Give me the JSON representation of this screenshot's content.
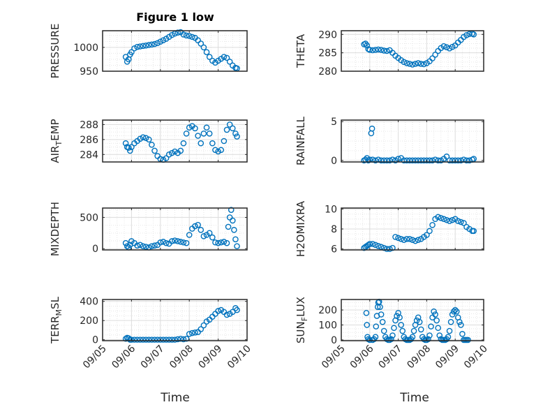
{
  "chart_data": {
    "type": "scatter",
    "title": "Figure 1 low",
    "xlabel": "Time",
    "x_ticks": [
      "09/05",
      "09/06",
      "09/07",
      "09/08",
      "09/09",
      "09/10"
    ],
    "marker_color": "#0072BD",
    "grid": true,
    "panels": [
      {
        "ylabel": "PRESSURE",
        "ylabel_sub": "",
        "ylim": [
          950,
          1035
        ],
        "yticks": [
          "950",
          "1000"
        ],
        "ytick_values": [
          950,
          1000
        ],
        "x": [
          5.8,
          5.85,
          5.9,
          5.95,
          6.0,
          6.1,
          6.2,
          6.3,
          6.4,
          6.5,
          6.6,
          6.7,
          6.8,
          6.9,
          7.0,
          7.1,
          7.2,
          7.3,
          7.4,
          7.5,
          7.6,
          7.7,
          7.8,
          7.9,
          8.0,
          8.1,
          8.2,
          8.3,
          8.4,
          8.5,
          8.6,
          8.7,
          8.8,
          8.9,
          9.0,
          9.1,
          9.2,
          9.3,
          9.4,
          9.5,
          9.6,
          9.65
        ],
        "y": [
          980,
          970,
          975,
          985,
          990,
          998,
          1001,
          1002,
          1003,
          1004,
          1005,
          1006,
          1007,
          1009,
          1012,
          1015,
          1018,
          1022,
          1026,
          1029,
          1031,
          1032,
          1027,
          1025,
          1024,
          1022,
          1020,
          1015,
          1008,
          1000,
          990,
          980,
          972,
          968,
          972,
          976,
          980,
          978,
          970,
          962,
          957,
          956
        ]
      },
      {
        "ylabel": "THETA",
        "ylabel_sub": "",
        "ylim": [
          280,
          291
        ],
        "yticks": [
          "280",
          "285",
          "290"
        ],
        "ytick_values": [
          280,
          285,
          290
        ],
        "x": [
          5.8,
          5.85,
          5.9,
          5.95,
          6.0,
          6.1,
          6.2,
          6.3,
          6.4,
          6.5,
          6.6,
          6.7,
          6.8,
          6.9,
          7.0,
          7.1,
          7.2,
          7.3,
          7.4,
          7.5,
          7.6,
          7.7,
          7.8,
          7.9,
          8.0,
          8.1,
          8.2,
          8.3,
          8.4,
          8.5,
          8.6,
          8.7,
          8.8,
          8.9,
          9.0,
          9.1,
          9.2,
          9.3,
          9.4,
          9.5,
          9.6,
          9.65
        ],
        "y": [
          287.3,
          287.5,
          287.0,
          286.0,
          285.8,
          285.7,
          285.8,
          285.9,
          285.8,
          285.6,
          285.5,
          285.7,
          285.0,
          284.2,
          283.6,
          283.0,
          282.5,
          282.2,
          282.0,
          281.8,
          282.0,
          282.2,
          282.0,
          281.9,
          282.2,
          282.7,
          283.5,
          284.5,
          285.5,
          286.3,
          286.8,
          286.5,
          286.2,
          286.6,
          287.0,
          287.8,
          288.5,
          289.3,
          289.8,
          290.1,
          290.2,
          290.0
        ]
      },
      {
        "ylabel": "AIR",
        "ylabel_sub": "T",
        "ylabel_rest": "EMP",
        "ylim": [
          283,
          288.6
        ],
        "yticks": [
          "284",
          "286",
          "288"
        ],
        "ytick_values": [
          284,
          286,
          288
        ],
        "x": [
          5.8,
          5.85,
          5.9,
          5.95,
          6.0,
          6.1,
          6.2,
          6.3,
          6.4,
          6.5,
          6.6,
          6.7,
          6.8,
          6.9,
          7.0,
          7.1,
          7.2,
          7.3,
          7.4,
          7.5,
          7.6,
          7.7,
          7.8,
          7.9,
          8.0,
          8.1,
          8.2,
          8.3,
          8.4,
          8.5,
          8.6,
          8.7,
          8.8,
          8.9,
          9.0,
          9.1,
          9.2,
          9.3,
          9.4,
          9.5,
          9.6,
          9.65
        ],
        "y": [
          285.5,
          285.0,
          284.9,
          284.5,
          285.0,
          285.5,
          285.8,
          286.1,
          286.3,
          286.2,
          286.0,
          285.3,
          284.5,
          283.8,
          283.4,
          283.3,
          283.5,
          284.0,
          284.2,
          284.4,
          284.2,
          284.5,
          285.5,
          286.8,
          287.6,
          287.8,
          287.5,
          286.5,
          285.5,
          286.8,
          287.6,
          286.8,
          285.5,
          284.6,
          284.4,
          284.6,
          285.8,
          287.3,
          288.0,
          287.5,
          286.8,
          286.4
        ]
      },
      {
        "ylabel": "RAINFALL",
        "ylabel_sub": "",
        "ylim": [
          -0.2,
          5.2
        ],
        "yticks": [
          "0",
          "5"
        ],
        "ytick_values": [
          0,
          5
        ],
        "x": [
          5.8,
          5.85,
          5.9,
          5.95,
          6.0,
          6.05,
          6.08,
          6.1,
          6.2,
          6.3,
          6.4,
          6.5,
          6.6,
          6.7,
          6.8,
          6.9,
          7.0,
          7.1,
          7.2,
          7.3,
          7.4,
          7.5,
          7.6,
          7.7,
          7.8,
          7.9,
          8.0,
          8.1,
          8.2,
          8.3,
          8.4,
          8.5,
          8.6,
          8.7,
          8.8,
          8.9,
          9.0,
          9.1,
          9.2,
          9.3,
          9.4,
          9.5,
          9.6,
          9.65
        ],
        "y": [
          0.0,
          0.1,
          0.3,
          0.0,
          0.1,
          3.5,
          4.1,
          0.1,
          0.0,
          0.1,
          0.0,
          0.0,
          0.0,
          0.0,
          0.1,
          0.0,
          0.2,
          0.3,
          0.0,
          0.0,
          0.0,
          0.0,
          0.0,
          0.0,
          0.0,
          0.0,
          0.0,
          0.0,
          0.0,
          0.1,
          0.0,
          0.0,
          0.2,
          0.5,
          0.0,
          0.0,
          0.0,
          0.0,
          0.0,
          0.1,
          0.0,
          0.0,
          0.1,
          0.2
        ]
      },
      {
        "ylabel": "MIXDEPTH",
        "ylabel_sub": "",
        "ylim": [
          -20,
          650
        ],
        "yticks": [
          "0",
          "500"
        ],
        "ytick_values": [
          0,
          500
        ],
        "x": [
          5.8,
          5.85,
          5.9,
          5.95,
          6.0,
          6.1,
          6.2,
          6.3,
          6.4,
          6.5,
          6.6,
          6.7,
          6.8,
          6.9,
          7.0,
          7.1,
          7.2,
          7.3,
          7.4,
          7.5,
          7.6,
          7.7,
          7.8,
          7.9,
          8.0,
          8.1,
          8.2,
          8.3,
          8.4,
          8.5,
          8.6,
          8.7,
          8.8,
          8.9,
          9.0,
          9.1,
          9.2,
          9.3,
          9.35,
          9.4,
          9.45,
          9.5,
          9.55,
          9.6,
          9.65
        ],
        "y": [
          90,
          40,
          20,
          60,
          120,
          90,
          50,
          60,
          40,
          30,
          20,
          40,
          50,
          60,
          100,
          110,
          90,
          80,
          120,
          130,
          120,
          110,
          100,
          90,
          220,
          320,
          360,
          380,
          300,
          200,
          220,
          250,
          180,
          100,
          90,
          100,
          110,
          90,
          350,
          500,
          620,
          450,
          300,
          150,
          40
        ]
      },
      {
        "ylabel": "H2OMIXRA",
        "ylabel_sub": "",
        "ylim": [
          5.9,
          10.1
        ],
        "yticks": [
          "6",
          "8",
          "10"
        ],
        "ytick_values": [
          6,
          8,
          10
        ],
        "x": [
          5.8,
          5.85,
          5.9,
          5.95,
          6.0,
          6.1,
          6.2,
          6.3,
          6.4,
          6.5,
          6.6,
          6.7,
          6.8,
          6.9,
          7.0,
          7.1,
          7.2,
          7.3,
          7.4,
          7.5,
          7.6,
          7.7,
          7.8,
          7.9,
          8.0,
          8.1,
          8.2,
          8.3,
          8.4,
          8.5,
          8.6,
          8.7,
          8.8,
          8.9,
          9.0,
          9.1,
          9.2,
          9.3,
          9.4,
          9.5,
          9.6,
          9.65
        ],
        "y": [
          6.1,
          6.2,
          6.3,
          6.4,
          6.5,
          6.5,
          6.4,
          6.3,
          6.2,
          6.1,
          6.0,
          6.0,
          6.1,
          7.2,
          7.1,
          7.0,
          6.9,
          7.0,
          7.0,
          6.9,
          6.8,
          6.9,
          7.0,
          7.2,
          7.4,
          7.8,
          8.4,
          9.0,
          9.2,
          9.1,
          9.0,
          8.9,
          8.8,
          8.9,
          9.0,
          8.8,
          8.7,
          8.6,
          8.2,
          8.0,
          7.8,
          7.8
        ]
      },
      {
        "ylabel": "TERR",
        "ylabel_sub": "M",
        "ylabel_rest": "SL",
        "ylim": [
          -10,
          420
        ],
        "yticks": [
          "0",
          "200",
          "400"
        ],
        "ytick_values": [
          0,
          200,
          400
        ],
        "x": [
          5.8,
          5.85,
          5.9,
          5.95,
          6.0,
          6.1,
          6.2,
          6.3,
          6.4,
          6.5,
          6.6,
          6.7,
          6.8,
          6.9,
          7.0,
          7.1,
          7.2,
          7.3,
          7.4,
          7.5,
          7.6,
          7.7,
          7.8,
          7.9,
          8.0,
          8.1,
          8.2,
          8.3,
          8.4,
          8.5,
          8.6,
          8.7,
          8.8,
          8.9,
          9.0,
          9.1,
          9.2,
          9.3,
          9.4,
          9.5,
          9.6,
          9.65
        ],
        "y": [
          10,
          20,
          15,
          0,
          0,
          0,
          0,
          0,
          0,
          0,
          0,
          0,
          0,
          0,
          0,
          0,
          0,
          0,
          0,
          0,
          5,
          10,
          5,
          10,
          60,
          70,
          75,
          80,
          110,
          150,
          190,
          210,
          240,
          270,
          300,
          310,
          290,
          260,
          270,
          290,
          330,
          310
        ]
      },
      {
        "ylabel": "SUN",
        "ylabel_sub": "F",
        "ylabel_rest": "LUX",
        "ylim": [
          -5,
          270
        ],
        "yticks": [
          "0",
          "100",
          "200"
        ],
        "ytick_values": [
          0,
          100,
          200
        ],
        "x": [
          5.88,
          5.9,
          5.92,
          5.95,
          6.0,
          6.1,
          6.15,
          6.2,
          6.22,
          6.25,
          6.28,
          6.3,
          6.33,
          6.36,
          6.4,
          6.45,
          6.5,
          6.55,
          6.6,
          6.65,
          6.7,
          6.75,
          6.8,
          6.85,
          6.9,
          6.95,
          7.0,
          7.05,
          7.1,
          7.15,
          7.2,
          7.25,
          7.3,
          7.35,
          7.4,
          7.45,
          7.5,
          7.55,
          7.6,
          7.65,
          7.7,
          7.75,
          7.8,
          7.85,
          7.9,
          7.95,
          8.0,
          8.05,
          8.1,
          8.15,
          8.2,
          8.25,
          8.3,
          8.35,
          8.4,
          8.45,
          8.5,
          8.55,
          8.6,
          8.65,
          8.7,
          8.75,
          8.8,
          8.85,
          8.9,
          8.95,
          9.0,
          9.05,
          9.1,
          9.15,
          9.2,
          9.25,
          9.3,
          9.35,
          9.4,
          9.45
        ],
        "y": [
          180,
          100,
          20,
          5,
          0,
          0,
          5,
          20,
          90,
          160,
          220,
          250,
          255,
          220,
          170,
          120,
          60,
          20,
          5,
          0,
          0,
          5,
          30,
          80,
          130,
          160,
          180,
          150,
          100,
          60,
          20,
          5,
          0,
          0,
          0,
          5,
          20,
          60,
          100,
          130,
          150,
          120,
          70,
          20,
          5,
          0,
          0,
          5,
          30,
          90,
          150,
          190,
          170,
          130,
          80,
          30,
          5,
          0,
          0,
          0,
          5,
          20,
          60,
          120,
          170,
          190,
          200,
          190,
          150,
          120,
          100,
          40,
          0,
          0,
          0,
          0
        ]
      }
    ]
  }
}
